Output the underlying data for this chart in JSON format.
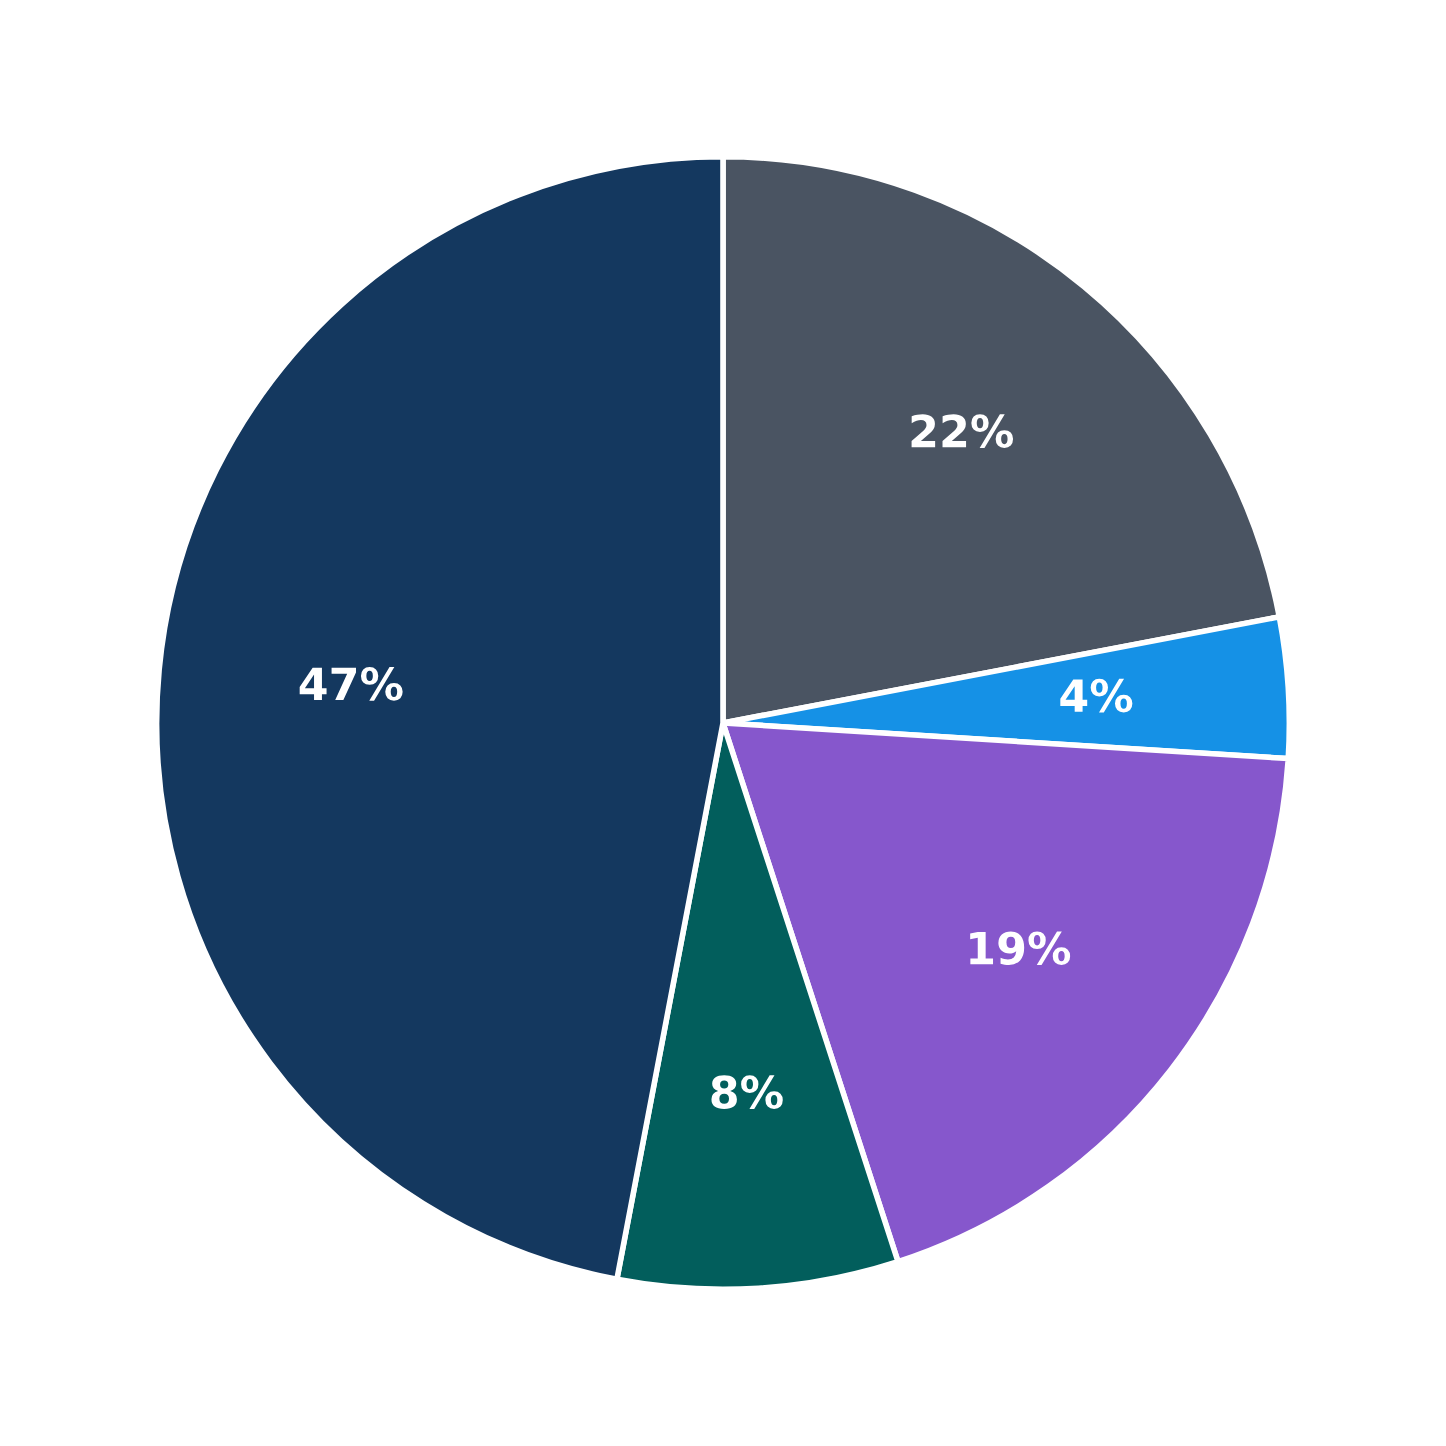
{
  "chart_data": {
    "type": "pie",
    "categories": [
      null,
      null,
      null,
      null,
      null
    ],
    "values": [
      22,
      4,
      19,
      8,
      47
    ],
    "colors": [
      "#4a5462",
      "#1591e6",
      "#8657cc",
      "#025e5c",
      "#14385f"
    ],
    "value_labels": [
      "22%",
      "4%",
      "19%",
      "8%",
      "47%"
    ]
  }
}
